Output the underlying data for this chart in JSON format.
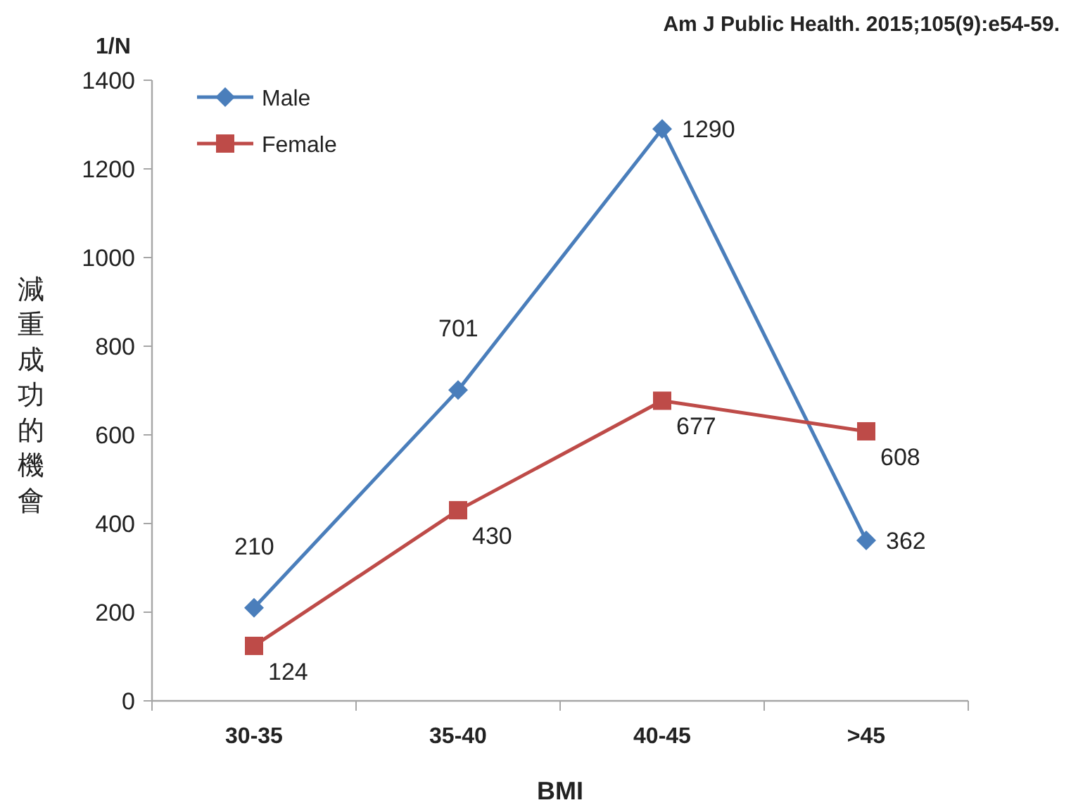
{
  "chart_data": {
    "type": "line",
    "xlabel": "BMI",
    "ylabel": "減重成功的機會",
    "annotations": [
      "1/N",
      "Am J Public Health. 2015;105(9):e54-59."
    ],
    "categories": [
      "30-35",
      "35-40",
      "40-45",
      ">45"
    ],
    "series": [
      {
        "name": "Male",
        "color": "#4a7ebb",
        "marker": "diamond",
        "values": [
          210,
          701,
          1290,
          362
        ]
      },
      {
        "name": "Female",
        "color": "#be4b48",
        "marker": "square",
        "values": [
          124,
          430,
          677,
          608
        ]
      }
    ],
    "ylim": [
      0,
      1400
    ],
    "yticks": [
      0,
      200,
      400,
      600,
      800,
      1000,
      1200,
      1400
    ],
    "data_labels": true,
    "legend": "top left",
    "line_style": "solid"
  }
}
